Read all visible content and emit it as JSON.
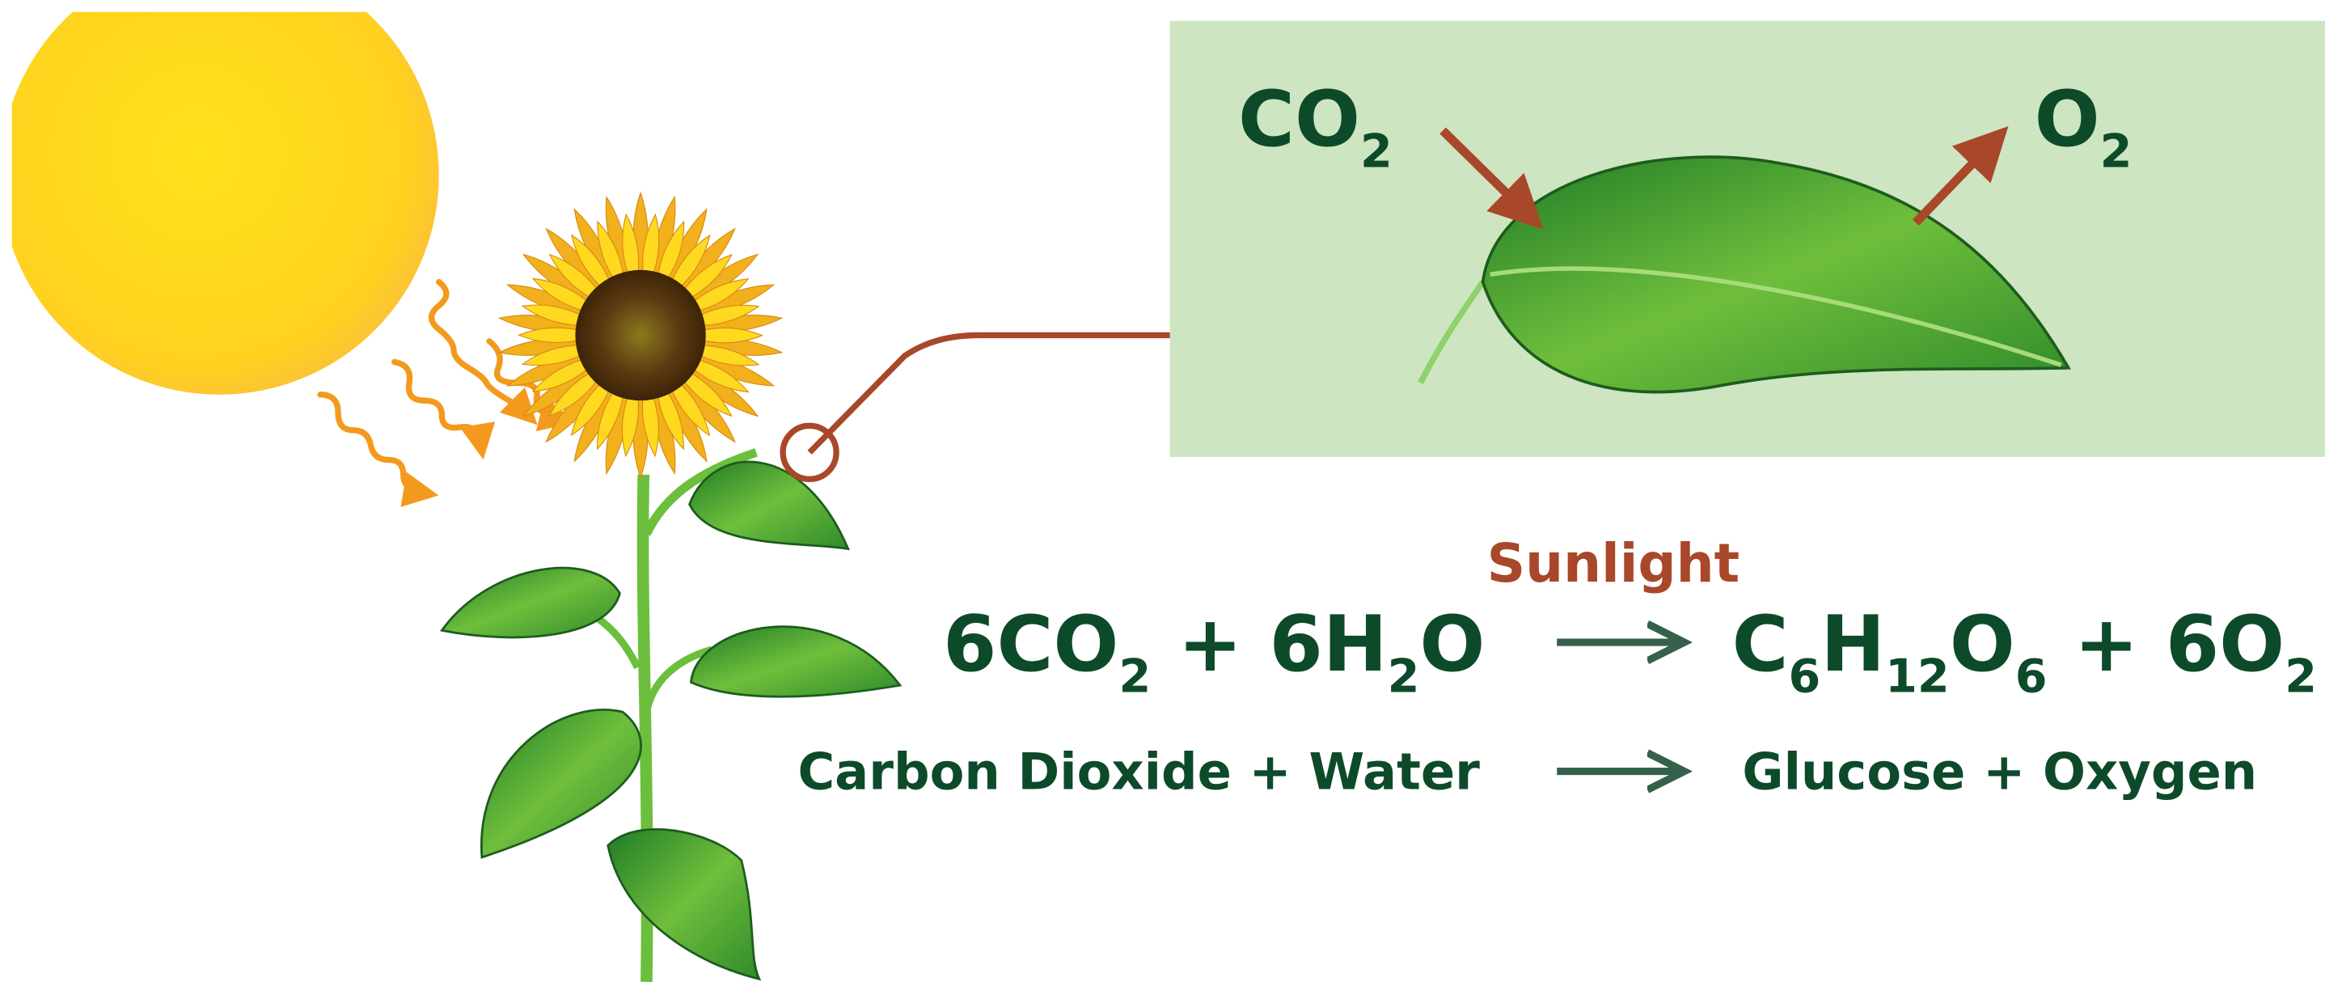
{
  "leaf_panel": {
    "input": [
      {
        "t": "CO"
      },
      {
        "sub": "2"
      }
    ],
    "output": [
      {
        "t": "O"
      },
      {
        "sub": "2"
      }
    ]
  },
  "equation": {
    "condition": "Sunlight",
    "reactants": [
      {
        "t": "6CO"
      },
      {
        "sub": "2"
      },
      {
        "t": " + 6H"
      },
      {
        "sub": "2"
      },
      {
        "t": "O"
      }
    ],
    "products": [
      {
        "t": "C"
      },
      {
        "sub": "6"
      },
      {
        "t": "H"
      },
      {
        "sub": "12"
      },
      {
        "t": "O"
      },
      {
        "sub": "6"
      },
      {
        "t": " + 6O"
      },
      {
        "sub": "2"
      }
    ],
    "reactants_words": "Carbon Dioxide + Water",
    "products_words": "Glucose + Oxygen"
  }
}
